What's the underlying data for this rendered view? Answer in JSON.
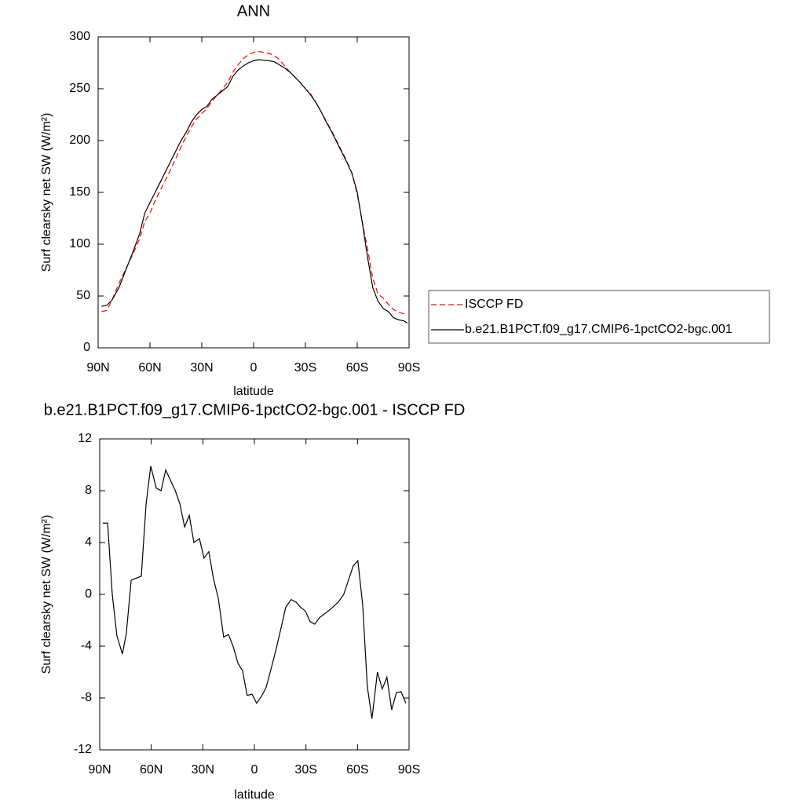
{
  "chart_data": [
    {
      "type": "line",
      "title": "ANN",
      "xlabel": "latitude",
      "ylabel": "Surf clearsky net SW (W/m²)",
      "x": [
        88,
        85,
        82,
        78,
        74,
        70,
        66,
        63,
        60,
        57,
        54,
        51,
        48,
        45,
        42,
        39,
        36,
        33,
        30,
        27,
        24,
        21,
        18,
        15,
        12,
        9,
        6,
        3,
        0,
        -3,
        -6,
        -9,
        -12,
        -15,
        -18,
        -21,
        -24,
        -27,
        -30,
        -33,
        -36,
        -39,
        -42,
        -45,
        -48,
        -51,
        -54,
        -57,
        -60,
        -63,
        -66,
        -69,
        -72,
        -75,
        -78,
        -81,
        -84,
        -87,
        -89
      ],
      "series": [
        {
          "name": "ISCCP FD",
          "color": "#ff0000",
          "line_style": "dashed",
          "values": [
            35,
            36,
            46,
            62,
            76,
            90,
            105,
            122,
            130,
            142,
            152,
            162,
            172,
            183,
            194,
            204,
            213,
            221,
            226,
            231,
            238,
            244,
            250,
            256,
            266,
            273,
            279,
            283,
            285,
            286,
            285,
            284,
            282,
            278,
            272,
            266,
            261,
            256,
            250,
            245,
            237,
            228,
            219,
            210,
            200,
            190,
            180,
            168,
            148,
            121,
            95,
            67,
            52,
            48,
            42,
            37,
            34,
            33,
            32
          ]
        },
        {
          "name": "b.e21.B1PCT.f09_g17.CMIP6-1pctCO2-bgc.001",
          "color": "#000000",
          "line_style": "solid",
          "values": [
            40,
            41,
            46,
            58,
            75,
            92,
            110,
            130,
            140,
            150,
            160,
            170,
            180,
            190,
            200,
            208,
            218,
            225,
            230,
            233,
            240,
            244,
            248,
            252,
            262,
            268,
            272,
            275,
            277,
            278,
            277.5,
            277,
            276,
            273,
            270,
            266,
            261,
            256,
            250,
            244,
            237,
            228,
            218,
            209,
            199,
            189,
            179,
            168,
            150,
            120,
            87,
            58,
            45,
            38,
            35,
            29,
            27,
            26,
            24
          ]
        }
      ],
      "xlim": [
        90,
        -90
      ],
      "xticks": [
        {
          "value": 90,
          "label": "90N"
        },
        {
          "value": 60,
          "label": "60N"
        },
        {
          "value": 30,
          "label": "30N"
        },
        0,
        {
          "value": -30,
          "label": "30S"
        },
        {
          "value": -60,
          "label": "60S"
        },
        {
          "value": -90,
          "label": "90S"
        }
      ],
      "ylim": [
        0,
        300
      ],
      "yticks": [
        0,
        50,
        100,
        150,
        200,
        250,
        300
      ],
      "legend": "right"
    },
    {
      "type": "line",
      "title": "b.e21.B1PCT.f09_g17.CMIP6-1pctCO2-bgc.001 - ISCCP FD",
      "xlabel": "latitude",
      "ylabel": "Surf clearsky net SW (W/m²)",
      "x": [
        88.2,
        85.4,
        82.7,
        80,
        76.8,
        74.5,
        71.7,
        65.8,
        63,
        60.3,
        57.1,
        54.3,
        51.6,
        46,
        43.4,
        40.6,
        37.9,
        35.2,
        32,
        29.3,
        26.5,
        23.8,
        21,
        17.9,
        15.1,
        12.4,
        9.6,
        6.9,
        4.2,
        1.4,
        -1.3,
        -4,
        -6.8,
        -10,
        -12.7,
        -15.5,
        -18.2,
        -21.4,
        -24.2,
        -26.9,
        -29.7,
        -32.4,
        -35.1,
        -37.9,
        -43.8,
        -48.8,
        -52,
        -57.5,
        -60.2,
        -63,
        -65.7,
        -68.4,
        -71.6,
        -74.4,
        -77.1,
        -79.9,
        -82.6,
        -85.3,
        -88.1
      ],
      "series": [
        {
          "color": "#000000",
          "line_style": "solid",
          "values": [
            5.5,
            5.5,
            0,
            -3.2,
            -4.6,
            -3,
            1.1,
            1.4,
            7,
            9.9,
            8.2,
            8,
            9.6,
            8,
            7,
            5.2,
            6.1,
            4,
            4.3,
            2.8,
            3.3,
            1.2,
            -0.3,
            -3.3,
            -3.1,
            -4,
            -5.3,
            -5.9,
            -7.8,
            -7.7,
            -8.4,
            -7.9,
            -7.2,
            -5.6,
            -4.2,
            -2.6,
            -1,
            -0.4,
            -0.6,
            -1,
            -1.3,
            -2.1,
            -2.3,
            -1.8,
            -1.2,
            -0.6,
            0,
            2.2,
            2.6,
            -0.8,
            -7.1,
            -9.6,
            -6,
            -7.3,
            -6.4,
            -8.9,
            -7.6,
            -7.5,
            -8.4
          ]
        }
      ],
      "xlim": [
        90,
        -90
      ],
      "xticks": [
        {
          "value": 90,
          "label": "90N"
        },
        {
          "value": 60,
          "label": "60N"
        },
        {
          "value": 30,
          "label": "30N"
        },
        0,
        {
          "value": -30,
          "label": "30S"
        },
        {
          "value": -60,
          "label": "60S"
        },
        {
          "value": -90,
          "label": "90S"
        }
      ],
      "ylim": [
        -12,
        12
      ],
      "yticks": [
        -12,
        -8,
        -4,
        0,
        4,
        8,
        12
      ]
    }
  ]
}
